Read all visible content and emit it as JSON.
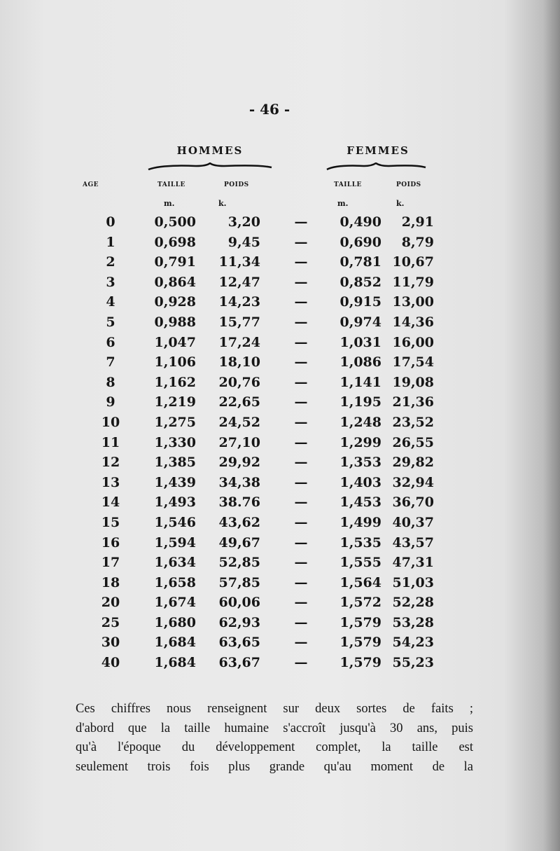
{
  "page_number": "- 46 -",
  "table": {
    "groups": [
      "HOMMES",
      "FEMMES"
    ],
    "columns": [
      "AGE",
      "TAILLE",
      "POIDS",
      "TAILLE",
      "POIDS"
    ],
    "units": [
      "m.",
      "k.",
      "m.",
      "k."
    ],
    "separator": "—",
    "rows": [
      [
        "0",
        "0,500",
        "3,20",
        "0,490",
        "2,91"
      ],
      [
        "1",
        "0,698",
        "9,45",
        "0,690",
        "8,79"
      ],
      [
        "2",
        "0,791",
        "11,34",
        "0,781",
        "10,67"
      ],
      [
        "3",
        "0,864",
        "12,47",
        "0,852",
        "11,79"
      ],
      [
        "4",
        "0,928",
        "14,23",
        "0,915",
        "13,00"
      ],
      [
        "5",
        "0,988",
        "15,77",
        "0,974",
        "14,36"
      ],
      [
        "6",
        "1,047",
        "17,24",
        "1,031",
        "16,00"
      ],
      [
        "7",
        "1,106",
        "18,10",
        "1,086",
        "17,54"
      ],
      [
        "8",
        "1,162",
        "20,76",
        "1,141",
        "19,08"
      ],
      [
        "9",
        "1,219",
        "22,65",
        "1,195",
        "21,36"
      ],
      [
        "10",
        "1,275",
        "24,52",
        "1,248",
        "23,52"
      ],
      [
        "11",
        "1,330",
        "27,10",
        "1,299",
        "26,55"
      ],
      [
        "12",
        "1,385",
        "29,92",
        "1,353",
        "29,82"
      ],
      [
        "13",
        "1,439",
        "34,38",
        "1,403",
        "32,94"
      ],
      [
        "14",
        "1,493",
        "38.76",
        "1,453",
        "36,70"
      ],
      [
        "15",
        "1,546",
        "43,62",
        "1,499",
        "40,37"
      ],
      [
        "16",
        "1,594",
        "49,67",
        "1,535",
        "43,57"
      ],
      [
        "17",
        "1,634",
        "52,85",
        "1,555",
        "47,31"
      ],
      [
        "18",
        "1,658",
        "57,85",
        "1,564",
        "51,03"
      ],
      [
        "20",
        "1,674",
        "60,06",
        "1,572",
        "52,28"
      ],
      [
        "25",
        "1,680",
        "62,93",
        "1,579",
        "53,28"
      ],
      [
        "30",
        "1,684",
        "63,65",
        "1,579",
        "54,23"
      ],
      [
        "40",
        "1,684",
        "63,67",
        "1,579",
        "55,23"
      ]
    ]
  },
  "paragraph": [
    "Ces chiffres nous renseignent sur deux sortes de faits ;",
    "d'abord que la taille humaine s'accroît jusqu'à 30 ans, puis",
    "qu'à l'époque du développement complet, la taille est",
    "seulement trois fois plus grande qu'au moment de la"
  ]
}
